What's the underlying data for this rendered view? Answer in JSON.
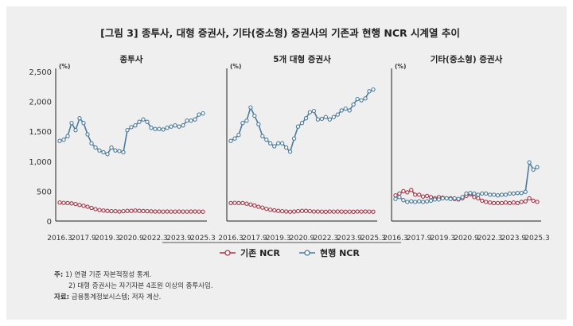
{
  "title": "[그림 3] 종투사, 대형 증권사, 기타(중소형) 증권사의 기존과 현행 NCR 시계열 추이",
  "legend": {
    "old": "기존 NCR",
    "new": "현행 NCR"
  },
  "colors": {
    "old": "#a6374a",
    "new": "#4c7c9c",
    "axis": "#222222"
  },
  "notes": {
    "line1_prefix": "주:",
    "line1": "1) 연결 기준 자본적정성 통계.",
    "line2": "2) 대형 증권사는 자기자본 4조원 이상의 종투사임.",
    "line3_prefix": "자료:",
    "line3": "금융통계정보시스템; 저자 계산."
  },
  "chart_data": [
    {
      "type": "line",
      "title": "종투사",
      "unit": "(%)",
      "ylim": [
        0,
        2500
      ],
      "yticks": [
        "0",
        "500",
        "1,000",
        "1,500",
        "2,000",
        "2,500"
      ],
      "xticks": [
        "2016.3",
        "2017.9",
        "2019.3",
        "2020.9",
        "2022.3",
        "2023.9",
        "2025.3"
      ],
      "x_start": "2016.3",
      "x_step": "quarterly",
      "series": [
        {
          "name": "기존 NCR",
          "values": [
            310,
            305,
            300,
            295,
            285,
            270,
            255,
            240,
            220,
            200,
            185,
            175,
            170,
            165,
            165,
            160,
            165,
            170,
            170,
            175,
            170,
            168,
            165,
            162,
            160,
            160,
            158,
            160,
            158,
            158,
            160,
            158,
            158,
            160,
            160,
            158,
            157
          ]
        },
        {
          "name": "현행 NCR",
          "values": [
            1340,
            1360,
            1420,
            1640,
            1520,
            1720,
            1640,
            1450,
            1300,
            1230,
            1180,
            1150,
            1120,
            1230,
            1180,
            1170,
            1150,
            1520,
            1570,
            1600,
            1660,
            1700,
            1660,
            1560,
            1540,
            1540,
            1530,
            1560,
            1580,
            1600,
            1580,
            1600,
            1680,
            1680,
            1700,
            1780,
            1800
          ]
        }
      ]
    },
    {
      "type": "line",
      "title": "5개 대형 증권사",
      "unit": "(%)",
      "ylim": [
        0,
        2500
      ],
      "xticks": [
        "2016.3",
        "2017.9",
        "2019.3",
        "2020.9",
        "2022.3",
        "2023.9",
        "2025.3"
      ],
      "x_start": "2016.3",
      "x_step": "quarterly",
      "series": [
        {
          "name": "기존 NCR",
          "values": [
            300,
            305,
            300,
            300,
            290,
            275,
            260,
            240,
            225,
            205,
            190,
            180,
            170,
            165,
            160,
            155,
            160,
            165,
            170,
            170,
            165,
            160,
            160,
            158,
            155,
            160,
            158,
            160,
            158,
            155,
            158,
            155,
            160,
            158,
            160,
            158,
            155
          ]
        },
        {
          "name": "현행 NCR",
          "values": [
            1340,
            1380,
            1440,
            1640,
            1680,
            1900,
            1760,
            1620,
            1420,
            1360,
            1300,
            1250,
            1300,
            1300,
            1230,
            1160,
            1380,
            1580,
            1640,
            1720,
            1820,
            1840,
            1700,
            1710,
            1740,
            1700,
            1740,
            1780,
            1850,
            1880,
            1850,
            1950,
            2040,
            2020,
            2050,
            2170,
            2200
          ]
        }
      ]
    },
    {
      "type": "line",
      "title": "기타(중소형) 증권사",
      "unit": "(%)",
      "ylim": [
        0,
        2500
      ],
      "xticks": [
        "2016.3",
        "2017.9",
        "2019.3",
        "2020.9",
        "2022.3",
        "2023.9",
        "2025.3"
      ],
      "x_start": "2016.3",
      "x_step": "quarterly",
      "series": [
        {
          "name": "기존 NCR",
          "values": [
            430,
            460,
            500,
            480,
            520,
            440,
            440,
            410,
            420,
            400,
            380,
            400,
            390,
            380,
            380,
            370,
            360,
            380,
            420,
            450,
            400,
            380,
            340,
            320,
            310,
            300,
            300,
            300,
            310,
            300,
            310,
            300,
            320,
            330,
            380,
            340,
            320
          ]
        },
        {
          "name": "현행 NCR",
          "values": [
            370,
            400,
            350,
            320,
            330,
            320,
            330,
            320,
            330,
            340,
            360,
            360,
            380,
            380,
            370,
            380,
            370,
            400,
            460,
            470,
            460,
            440,
            460,
            460,
            440,
            440,
            430,
            440,
            440,
            460,
            460,
            470,
            470,
            490,
            980,
            860,
            900
          ]
        }
      ]
    }
  ]
}
